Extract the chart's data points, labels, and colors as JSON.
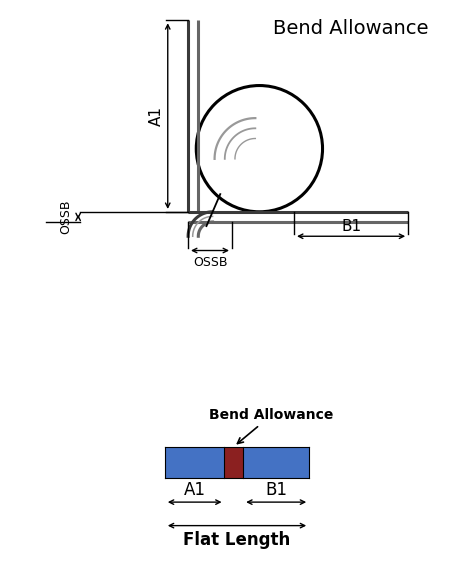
{
  "bg_color": "#ffffff",
  "title_bend_allowance": "Bend Allowance",
  "bar_blue_color": "#4472C4",
  "bar_red_color": "#8B2020",
  "label_A1": "A1",
  "label_B1": "B1",
  "label_OSSB_horiz": "OSSB",
  "label_OSSB_vert": "OSSB",
  "label_flat_length": "Flat Length",
  "label_bend_allowance": "Bend Allowance",
  "metal_dark": "#3a3a3a",
  "metal_mid": "#666666",
  "metal_light": "#999999",
  "dim_color": "#000000",
  "circle_color": "#000000"
}
